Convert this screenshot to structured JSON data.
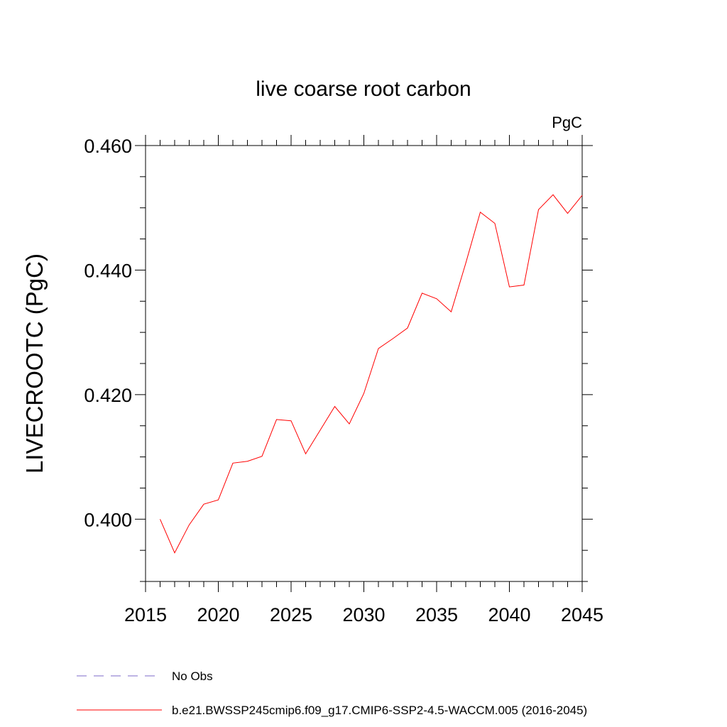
{
  "chart_data": {
    "type": "line",
    "title": "live coarse root carbon",
    "units": "PgC",
    "xlabel": "",
    "ylabel": "LIVECROOTC  (PgC)",
    "xlim": [
      2015,
      2045
    ],
    "ylim": [
      0.39,
      0.46
    ],
    "x_ticks": [
      "2015",
      "2020",
      "2025",
      "2030",
      "2035",
      "2040",
      "2045"
    ],
    "y_ticks": [
      "0.400",
      "0.420",
      "0.440",
      "0.460"
    ],
    "series": [
      {
        "name": "b.e21.BWSSP245cmip6.f09_g17.CMIP6-SSP2-4.5-WACCM.005 (2016-2045)",
        "color": "#ff0000",
        "dash": "solid",
        "x": [
          2016,
          2017,
          2018,
          2019,
          2020,
          2021,
          2022,
          2023,
          2024,
          2025,
          2026,
          2027,
          2028,
          2029,
          2030,
          2031,
          2032,
          2033,
          2034,
          2035,
          2036,
          2037,
          2038,
          2039,
          2040,
          2041,
          2042,
          2043,
          2044,
          2045
        ],
        "values": [
          0.4,
          0.3946,
          0.3991,
          0.4024,
          0.4031,
          0.409,
          0.4093,
          0.4101,
          0.416,
          0.4158,
          0.4105,
          0.4143,
          0.4181,
          0.4153,
          0.4202,
          0.4274,
          0.429,
          0.4307,
          0.4363,
          0.4354,
          0.4333,
          0.4411,
          0.4493,
          0.4475,
          0.4373,
          0.4376,
          0.4497,
          0.4521,
          0.4491,
          0.452
        ]
      }
    ],
    "legend": [
      {
        "label": "No Obs",
        "color": "#7b68c8",
        "dash": "dashed"
      },
      {
        "label": "b.e21.BWSSP245cmip6.f09_g17.CMIP6-SSP2-4.5-WACCM.005 (2016-2045)",
        "color": "#ff0000",
        "dash": "solid"
      }
    ]
  }
}
